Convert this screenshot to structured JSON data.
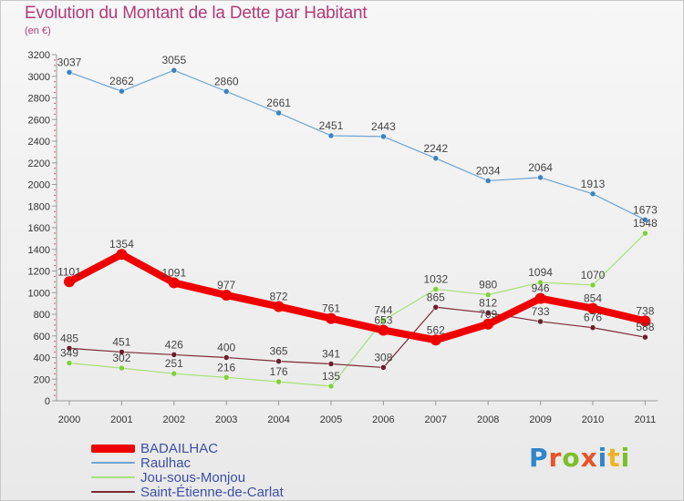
{
  "title": "Evolution du Montant de la Dette par Habitant",
  "subtitle": "(en €)",
  "logo_letters": [
    {
      "char": "P",
      "color": "#2f86c9"
    },
    {
      "char": "r",
      "color": "#e8542a"
    },
    {
      "char": "o",
      "color": "#7bbf2a"
    },
    {
      "char": "x",
      "color": "#e8542a"
    },
    {
      "char": "i",
      "color": "#2f86c9"
    },
    {
      "char": "t",
      "color": "#f0b323"
    },
    {
      "char": "i",
      "color": "#7bbf2a"
    }
  ],
  "chart_data": {
    "type": "line",
    "title": "Evolution du Montant de la Dette par Habitant",
    "subtitle": "(en €)",
    "x": [
      "2000",
      "2001",
      "2002",
      "2003",
      "2004",
      "2005",
      "2006",
      "2007",
      "2008",
      "2009",
      "2010",
      "2011"
    ],
    "ylim": [
      0,
      3200
    ],
    "yticks": [
      0,
      200,
      400,
      600,
      800,
      1000,
      1200,
      1400,
      1600,
      1800,
      2000,
      2200,
      2400,
      2600,
      2800,
      3000,
      3200
    ],
    "grid": false,
    "legend_position": "bottom-left",
    "series": [
      {
        "name": "BADAILHAC",
        "color": "#ee0000",
        "values": [
          1101,
          1354,
          1091,
          977,
          872,
          761,
          653,
          562,
          709,
          946,
          854,
          738
        ],
        "labels": [
          "1101",
          "1354",
          "1091",
          "977",
          "872",
          "761",
          "653",
          "562",
          "709",
          "946",
          "854",
          "738"
        ]
      },
      {
        "name": "Raulhac",
        "color": "#6fa4d2",
        "values": [
          3037,
          2862,
          3055,
          2860,
          2661,
          2451,
          2443,
          2242,
          2034,
          2064,
          1913,
          1673
        ],
        "labels": [
          "3037",
          "2862",
          "3055",
          "2860",
          "2661",
          "2451",
          "2443",
          "2242",
          "2034",
          "2064",
          "1913",
          "1673"
        ]
      },
      {
        "name": "Jou-sous-Monjou",
        "color": "#a8e07a",
        "values": [
          349,
          302,
          251,
          216,
          176,
          135,
          744,
          1032,
          980,
          1094,
          1070,
          1548
        ],
        "labels": [
          "349",
          "302",
          "251",
          "216",
          "176",
          "135",
          "744",
          "1032",
          "980",
          "1094",
          "1070",
          "1548"
        ]
      },
      {
        "name": "Saint-Étienne-de-Carlat",
        "color": "#7a2a35",
        "values": [
          485,
          451,
          426,
          400,
          365,
          341,
          308,
          865,
          812,
          733,
          676,
          588
        ],
        "labels": [
          "485",
          "451",
          "426",
          "400",
          "365",
          "341",
          "308",
          "865",
          "812",
          "733",
          "676",
          "588"
        ]
      }
    ]
  }
}
